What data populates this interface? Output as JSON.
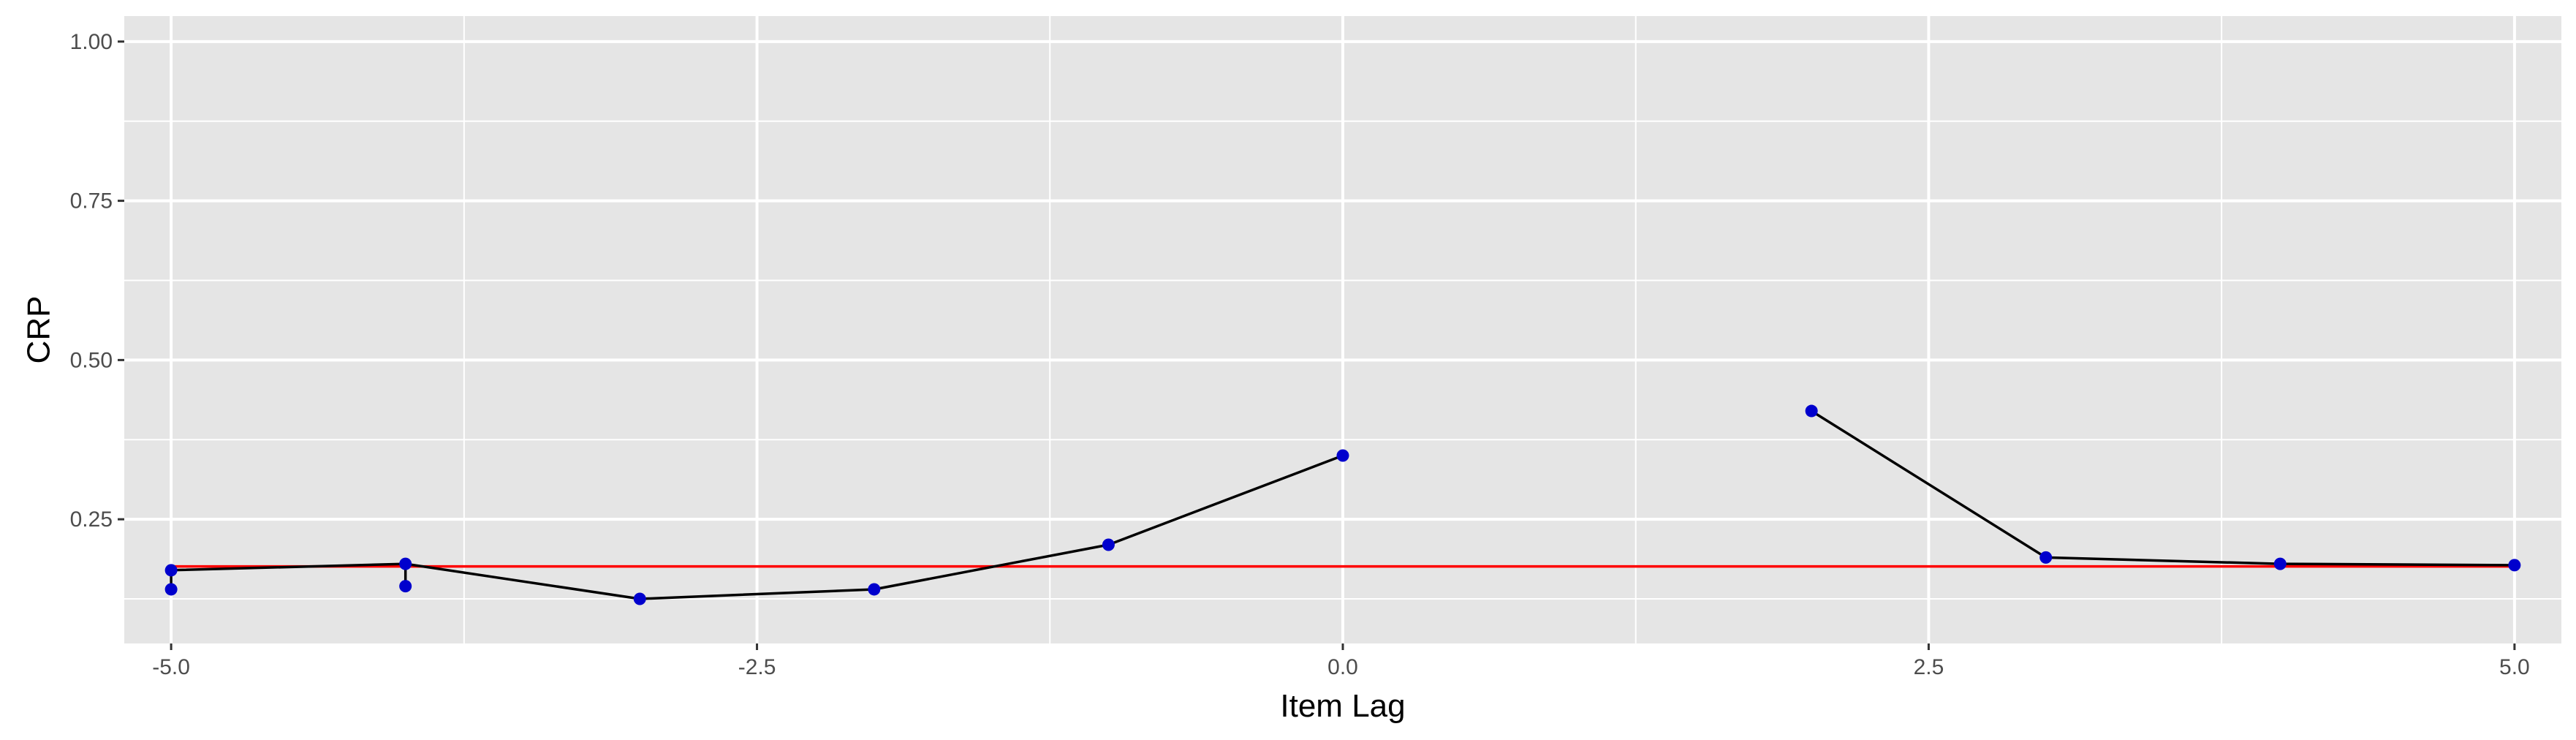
{
  "chart_data": {
    "type": "line",
    "title": "",
    "xlabel": "Item Lag",
    "ylabel": "CRP",
    "xlim": [
      -5.2,
      5.2
    ],
    "ylim": [
      0.055,
      1.04
    ],
    "x_ticks": [
      -5.0,
      -2.5,
      0.0,
      2.5,
      5.0
    ],
    "x_tick_labels": [
      "-5.0",
      "-2.5",
      "0.0",
      "2.5",
      "5.0"
    ],
    "y_ticks": [
      0.25,
      0.5,
      0.75,
      1.0
    ],
    "y_tick_labels": [
      "0.25",
      "0.50",
      "0.75",
      "1.00"
    ],
    "x_minor_ticks": [
      -3.75,
      -1.25,
      1.25,
      3.75
    ],
    "y_minor_ticks": [
      0.125,
      0.375,
      0.625,
      0.875
    ],
    "grid": true,
    "legend": "none",
    "colors": {
      "panel": "#e5e5e5",
      "grid": "#ffffff",
      "line": "#000000",
      "points": "#0000cd",
      "reference": "#ff0000"
    },
    "series": [
      {
        "segments": [
          [
            {
              "x": -5,
              "y": 0.17
            },
            {
              "x": -4,
              "y": 0.18
            },
            {
              "x": -3,
              "y": 0.125
            },
            {
              "x": -2,
              "y": 0.14
            },
            {
              "x": -1,
              "y": 0.21
            },
            {
              "x": 0,
              "y": 0.35
            }
          ],
          [
            {
              "x": -5,
              "y": 0.14
            },
            {
              "x": -5,
              "y": 0.17
            }
          ],
          [
            {
              "x": -4,
              "y": 0.145
            },
            {
              "x": -4,
              "y": 0.18
            }
          ],
          [
            {
              "x": 2,
              "y": 0.42
            },
            {
              "x": 3,
              "y": 0.19
            },
            {
              "x": 4,
              "y": 0.18
            },
            {
              "x": 5,
              "y": 0.178
            }
          ]
        ],
        "extra_points": [
          {
            "x": -5,
            "y": 0.14
          },
          {
            "x": -4,
            "y": 0.145
          }
        ]
      }
    ],
    "reference_line": {
      "y": 0.176
    }
  }
}
